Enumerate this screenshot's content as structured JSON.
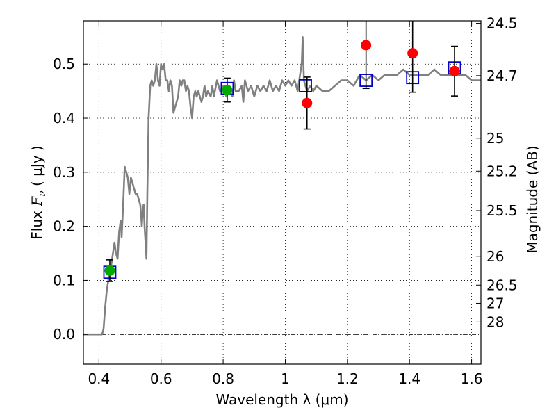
{
  "chart_data": {
    "type": "line",
    "xlabel": "Wavelength  λ (μm)",
    "ylabel": {
      "prefix": "Flux  ",
      "symbol": "F",
      "sub": "ν",
      "suffix": " ( μJy )"
    },
    "y2label": "Magnitude (AB)",
    "xlim": [
      0.35,
      1.63
    ],
    "ylim": [
      -0.055,
      0.58
    ],
    "grid": true,
    "xticks": [
      {
        "v": 0.4,
        "label": "0.4"
      },
      {
        "v": 0.6,
        "label": "0.6"
      },
      {
        "v": 0.8,
        "label": "0.8"
      },
      {
        "v": 1.0,
        "label": "1"
      },
      {
        "v": 1.2,
        "label": "1.2"
      },
      {
        "v": 1.4,
        "label": "1.4"
      },
      {
        "v": 1.6,
        "label": "1.6"
      }
    ],
    "yticks": [
      {
        "v": 0.0,
        "label": "0.0"
      },
      {
        "v": 0.1,
        "label": "0.1"
      },
      {
        "v": 0.2,
        "label": "0.2"
      },
      {
        "v": 0.3,
        "label": "0.3"
      },
      {
        "v": 0.4,
        "label": "0.4"
      },
      {
        "v": 0.5,
        "label": "0.5"
      }
    ],
    "mag_ticks": [
      {
        "mag": 24.5,
        "label": "24.5"
      },
      {
        "mag": 24.7,
        "label": "24.7"
      },
      {
        "mag": 25.0,
        "label": "25"
      },
      {
        "mag": 25.2,
        "label": "25.2"
      },
      {
        "mag": 25.5,
        "label": "25.5"
      },
      {
        "mag": 26.0,
        "label": "26"
      },
      {
        "mag": 26.5,
        "label": "26.5"
      },
      {
        "mag": 27.0,
        "label": "27"
      },
      {
        "mag": 28.0,
        "label": "28"
      }
    ],
    "colors": {
      "model": "#808080",
      "observed": "#ff0000",
      "green": "#00aa00",
      "box": "#0000cc",
      "errorbar": "#000000"
    },
    "series": [
      {
        "kind": "line",
        "points": [
          [
            0.35,
            0.0
          ],
          [
            0.41,
            0.0
          ],
          [
            0.415,
            0.01
          ],
          [
            0.42,
            0.05
          ],
          [
            0.425,
            0.08
          ],
          [
            0.43,
            0.1
          ],
          [
            0.435,
            0.12
          ],
          [
            0.44,
            0.13
          ],
          [
            0.445,
            0.15
          ],
          [
            0.45,
            0.17
          ],
          [
            0.455,
            0.15
          ],
          [
            0.46,
            0.14
          ],
          [
            0.465,
            0.19
          ],
          [
            0.47,
            0.21
          ],
          [
            0.473,
            0.18
          ],
          [
            0.478,
            0.24
          ],
          [
            0.483,
            0.31
          ],
          [
            0.488,
            0.3
          ],
          [
            0.493,
            0.29
          ],
          [
            0.498,
            0.26
          ],
          [
            0.503,
            0.29
          ],
          [
            0.508,
            0.28
          ],
          [
            0.513,
            0.27
          ],
          [
            0.518,
            0.26
          ],
          [
            0.523,
            0.26
          ],
          [
            0.528,
            0.25
          ],
          [
            0.533,
            0.24
          ],
          [
            0.536,
            0.22
          ],
          [
            0.538,
            0.2
          ],
          [
            0.541,
            0.23
          ],
          [
            0.544,
            0.24
          ],
          [
            0.547,
            0.2
          ],
          [
            0.55,
            0.17
          ],
          [
            0.553,
            0.14
          ],
          [
            0.556,
            0.27
          ],
          [
            0.56,
            0.4
          ],
          [
            0.565,
            0.46
          ],
          [
            0.57,
            0.47
          ],
          [
            0.575,
            0.46
          ],
          [
            0.58,
            0.47
          ],
          [
            0.585,
            0.5
          ],
          [
            0.59,
            0.47
          ],
          [
            0.595,
            0.46
          ],
          [
            0.6,
            0.5
          ],
          [
            0.605,
            0.49
          ],
          [
            0.61,
            0.5
          ],
          [
            0.615,
            0.47
          ],
          [
            0.62,
            0.47
          ],
          [
            0.625,
            0.45
          ],
          [
            0.63,
            0.47
          ],
          [
            0.635,
            0.46
          ],
          [
            0.64,
            0.41
          ],
          [
            0.645,
            0.42
          ],
          [
            0.65,
            0.43
          ],
          [
            0.655,
            0.44
          ],
          [
            0.66,
            0.47
          ],
          [
            0.665,
            0.46
          ],
          [
            0.67,
            0.47
          ],
          [
            0.675,
            0.47
          ],
          [
            0.68,
            0.45
          ],
          [
            0.685,
            0.46
          ],
          [
            0.69,
            0.45
          ],
          [
            0.695,
            0.42
          ],
          [
            0.7,
            0.4
          ],
          [
            0.705,
            0.44
          ],
          [
            0.71,
            0.45
          ],
          [
            0.715,
            0.44
          ],
          [
            0.72,
            0.45
          ],
          [
            0.725,
            0.44
          ],
          [
            0.73,
            0.43
          ],
          [
            0.735,
            0.44
          ],
          [
            0.74,
            0.46
          ],
          [
            0.745,
            0.44
          ],
          [
            0.75,
            0.45
          ],
          [
            0.76,
            0.44
          ],
          [
            0.765,
            0.46
          ],
          [
            0.77,
            0.44
          ],
          [
            0.78,
            0.47
          ],
          [
            0.79,
            0.45
          ],
          [
            0.8,
            0.46
          ],
          [
            0.81,
            0.44
          ],
          [
            0.82,
            0.45
          ],
          [
            0.83,
            0.44
          ],
          [
            0.835,
            0.47
          ],
          [
            0.84,
            0.45
          ],
          [
            0.85,
            0.45
          ],
          [
            0.86,
            0.46
          ],
          [
            0.865,
            0.43
          ],
          [
            0.87,
            0.47
          ],
          [
            0.88,
            0.45
          ],
          [
            0.89,
            0.46
          ],
          [
            0.9,
            0.44
          ],
          [
            0.91,
            0.46
          ],
          [
            0.92,
            0.45
          ],
          [
            0.93,
            0.46
          ],
          [
            0.94,
            0.45
          ],
          [
            0.95,
            0.47
          ],
          [
            0.96,
            0.45
          ],
          [
            0.97,
            0.46
          ],
          [
            0.98,
            0.45
          ],
          [
            0.99,
            0.47
          ],
          [
            1.0,
            0.46
          ],
          [
            1.01,
            0.47
          ],
          [
            1.02,
            0.46
          ],
          [
            1.03,
            0.47
          ],
          [
            1.04,
            0.45
          ],
          [
            1.05,
            0.49
          ],
          [
            1.053,
            0.5
          ],
          [
            1.056,
            0.55
          ],
          [
            1.06,
            0.47
          ],
          [
            1.065,
            0.46
          ],
          [
            1.07,
            0.45
          ],
          [
            1.08,
            0.46
          ],
          [
            1.09,
            0.45
          ],
          [
            1.1,
            0.46
          ],
          [
            1.12,
            0.45
          ],
          [
            1.14,
            0.45
          ],
          [
            1.16,
            0.46
          ],
          [
            1.18,
            0.47
          ],
          [
            1.2,
            0.47
          ],
          [
            1.22,
            0.46
          ],
          [
            1.24,
            0.48
          ],
          [
            1.26,
            0.47
          ],
          [
            1.28,
            0.48
          ],
          [
            1.3,
            0.47
          ],
          [
            1.32,
            0.48
          ],
          [
            1.34,
            0.48
          ],
          [
            1.36,
            0.48
          ],
          [
            1.38,
            0.49
          ],
          [
            1.4,
            0.48
          ],
          [
            1.42,
            0.48
          ],
          [
            1.44,
            0.48
          ],
          [
            1.46,
            0.48
          ],
          [
            1.48,
            0.49
          ],
          [
            1.5,
            0.48
          ],
          [
            1.52,
            0.48
          ],
          [
            1.54,
            0.48
          ],
          [
            1.56,
            0.48
          ],
          [
            1.58,
            0.48
          ],
          [
            1.6,
            0.47
          ],
          [
            1.63,
            0.47
          ]
        ]
      },
      {
        "kind": "boxes",
        "points": [
          [
            0.435,
            0.115
          ],
          [
            0.813,
            0.455
          ],
          [
            1.065,
            0.46
          ],
          [
            1.26,
            0.47
          ],
          [
            1.41,
            0.475
          ],
          [
            1.545,
            0.493
          ]
        ]
      },
      {
        "kind": "points",
        "points": [
          {
            "x": 0.435,
            "y": 0.118,
            "err": 0.02,
            "fill": "green"
          },
          {
            "x": 0.813,
            "y": 0.452,
            "err": 0.022,
            "fill": "green"
          },
          {
            "x": 1.07,
            "y": 0.428,
            "err": 0.048,
            "fill": "observed"
          },
          {
            "x": 1.26,
            "y": 0.535,
            "err": 0.08,
            "fill": "observed"
          },
          {
            "x": 1.41,
            "y": 0.52,
            "err": 0.072,
            "fill": "observed"
          },
          {
            "x": 1.545,
            "y": 0.487,
            "err": 0.046,
            "fill": "observed"
          }
        ]
      }
    ]
  }
}
